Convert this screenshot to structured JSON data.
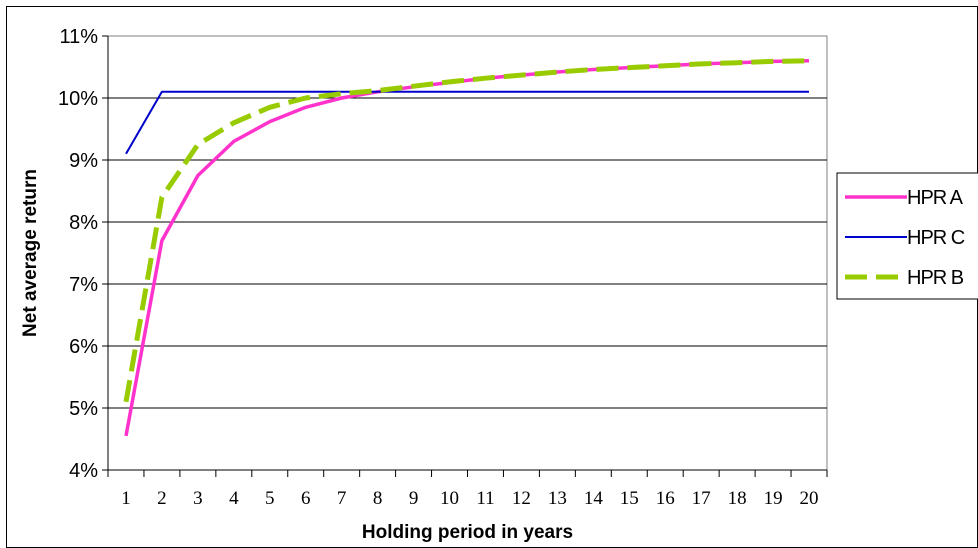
{
  "chart_data": {
    "type": "line",
    "title": "",
    "xlabel": "Holding period in years",
    "ylabel": "Net average return",
    "x": [
      1,
      2,
      3,
      4,
      5,
      6,
      7,
      8,
      9,
      10,
      11,
      12,
      13,
      14,
      15,
      16,
      17,
      18,
      19,
      20
    ],
    "ylim": [
      0.04,
      0.11
    ],
    "yticks": [
      "4%",
      "5%",
      "6%",
      "7%",
      "8%",
      "9%",
      "10%",
      "11%"
    ],
    "xticks": [
      "1",
      "2",
      "3",
      "4",
      "5",
      "6",
      "7",
      "8",
      "9",
      "10",
      "11",
      "12",
      "13",
      "14",
      "15",
      "16",
      "17",
      "18",
      "19",
      "20"
    ],
    "grid": "horizontal",
    "legend_position": "right",
    "series": [
      {
        "name": "HPR A",
        "color": "#ff33cc",
        "style": "solid",
        "values": [
          0.0455,
          0.077,
          0.0875,
          0.093,
          0.0962,
          0.0985,
          0.1,
          0.101,
          0.1018,
          0.1025,
          0.1032,
          0.1037,
          0.1042,
          0.1046,
          0.1049,
          0.1052,
          0.1055,
          0.1057,
          0.1059,
          0.106
        ]
      },
      {
        "name": "HPR C",
        "color": "#0000cc",
        "style": "solid",
        "values": [
          0.091,
          0.101,
          0.101,
          0.101,
          0.101,
          0.101,
          0.101,
          0.101,
          0.101,
          0.101,
          0.101,
          0.101,
          0.101,
          0.101,
          0.101,
          0.101,
          0.101,
          0.101,
          0.101,
          0.101
        ]
      },
      {
        "name": "HPR B",
        "color": "#99cc00",
        "style": "dashed",
        "values": [
          0.051,
          0.084,
          0.0925,
          0.096,
          0.0985,
          0.1,
          0.1007,
          0.1012,
          0.1019,
          0.1026,
          0.1032,
          0.1037,
          0.1042,
          0.1046,
          0.1049,
          0.1052,
          0.1055,
          0.1057,
          0.1059,
          0.106
        ]
      }
    ]
  }
}
